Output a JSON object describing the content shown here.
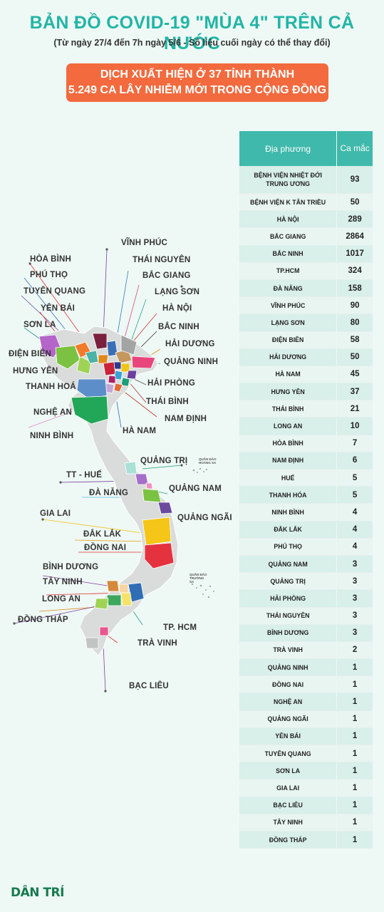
{
  "header": {
    "title": "BẢN ĐỒ COVID-19 \"MÙA 4\" TRÊN CẢ NƯỚC",
    "subtitle": "(Từ ngày 27/4 đến 7h ngày 5/6 - Số liệu cuối ngày có thể thay đổi)"
  },
  "banner": {
    "line1": "DỊCH XUẤT HIỆN Ở 37 TỈNH THÀNH",
    "line2": "5.249 CA LÂY NHIỄM MỚI TRONG CỘNG ĐỒNG"
  },
  "colors": {
    "title": "#22b5a6",
    "banner": "#f26a3d",
    "table_header": "#3fb9ab",
    "map_base": "#d9dcdb"
  },
  "map": {
    "labels": [
      {
        "name": "map-label-vinh-phuc",
        "text": "VĨNH PHÚC"
      },
      {
        "name": "map-label-thai-nguyen",
        "text": "THÁI NGUYÊN"
      },
      {
        "name": "map-label-bac-giang",
        "text": "BẮC GIANG"
      },
      {
        "name": "map-label-lang-son",
        "text": "LẠNG SƠN"
      },
      {
        "name": "map-label-ha-noi",
        "text": "HÀ NỘI"
      },
      {
        "name": "map-label-bac-ninh",
        "text": "BẮC NINH"
      },
      {
        "name": "map-label-hai-duong",
        "text": "HẢI DƯƠNG"
      },
      {
        "name": "map-label-quang-ninh",
        "text": "QUẢNG NINH"
      },
      {
        "name": "map-label-hai-phong",
        "text": "HẢI PHÒNG"
      },
      {
        "name": "map-label-thai-binh",
        "text": "THÁI BÌNH"
      },
      {
        "name": "map-label-nam-dinh",
        "text": "NAM ĐỊNH"
      },
      {
        "name": "map-label-ha-nam",
        "text": "HÀ NAM"
      },
      {
        "name": "map-label-hoa-binh",
        "text": "HÒA BÌNH"
      },
      {
        "name": "map-label-phu-tho",
        "text": "PHÚ THỌ"
      },
      {
        "name": "map-label-tuyen-quang",
        "text": "TUYÊN QUANG"
      },
      {
        "name": "map-label-yen-bai",
        "text": "YÊN BÁI"
      },
      {
        "name": "map-label-son-la",
        "text": "SƠN LA"
      },
      {
        "name": "map-label-dien-bien",
        "text": "ĐIỆN BIÊN"
      },
      {
        "name": "map-label-hung-yen",
        "text": "HƯNG YÊN"
      },
      {
        "name": "map-label-thanh-hoa",
        "text": "THANH HOÁ"
      },
      {
        "name": "map-label-nghe-an",
        "text": "NGHỆ AN"
      },
      {
        "name": "map-label-ninh-binh",
        "text": "NINH BÌNH"
      },
      {
        "name": "map-label-quang-tri",
        "text": "QUẢNG TRỊ"
      },
      {
        "name": "map-label-tt-hue",
        "text": "TT - HUẾ"
      },
      {
        "name": "map-label-da-nang",
        "text": "ĐÀ NẴNG"
      },
      {
        "name": "map-label-quang-nam",
        "text": "QUẢNG NAM"
      },
      {
        "name": "map-label-quang-ngai",
        "text": "QUẢNG NGÃI"
      },
      {
        "name": "map-label-gia-lai",
        "text": "GIA LAI"
      },
      {
        "name": "map-label-dak-lak",
        "text": "ĐẮK LẮK"
      },
      {
        "name": "map-label-dong-nai",
        "text": "ĐỒNG NAI"
      },
      {
        "name": "map-label-binh-duong",
        "text": "BÌNH DƯƠNG"
      },
      {
        "name": "map-label-tay-ninh",
        "text": "TÂY NINH"
      },
      {
        "name": "map-label-long-an",
        "text": "LONG AN"
      },
      {
        "name": "map-label-dong-thap",
        "text": "ĐỒNG THÁP"
      },
      {
        "name": "map-label-tp-hcm",
        "text": "TP. HCM"
      },
      {
        "name": "map-label-tra-vinh",
        "text": "TRÀ VINH"
      },
      {
        "name": "map-label-bac-lieu",
        "text": "BẠC LIÊU"
      }
    ],
    "island_hoang_sa": "QUẦN ĐẢO HOÀNG SA",
    "island_truong_sa": "QUẦN ĐẢO TRƯỜNG SA"
  },
  "chart_data": {
    "type": "table",
    "columns": [
      "Địa phương",
      "Ca mắc"
    ],
    "rows": [
      [
        "BỆNH VIỆN NHIỆT ĐỚI TRUNG ƯƠNG",
        93
      ],
      [
        "BỆNH VIỆN K TÂN TRIỀU",
        50
      ],
      [
        "HÀ NỘI",
        289
      ],
      [
        "BẮC GIANG",
        2864
      ],
      [
        "BẮC NINH",
        1017
      ],
      [
        "TP.HCM",
        324
      ],
      [
        "ĐÀ NẴNG",
        158
      ],
      [
        "VĨNH PHÚC",
        90
      ],
      [
        "LẠNG SƠN",
        80
      ],
      [
        "ĐIỆN BIÊN",
        58
      ],
      [
        "HẢI DƯƠNG",
        50
      ],
      [
        "HÀ NAM",
        45
      ],
      [
        "HƯNG YÊN",
        37
      ],
      [
        "THÁI BÌNH",
        21
      ],
      [
        "LONG AN",
        10
      ],
      [
        "HÒA BÌNH",
        7
      ],
      [
        "NAM ĐỊNH",
        6
      ],
      [
        "HUẾ",
        5
      ],
      [
        "THANH HÓA",
        5
      ],
      [
        "NINH BÌNH",
        4
      ],
      [
        "ĐẮK LẮK",
        4
      ],
      [
        "PHÚ THỌ",
        4
      ],
      [
        "QUẢNG NAM",
        3
      ],
      [
        "QUẢNG TRỊ",
        3
      ],
      [
        "HẢI PHÒNG",
        3
      ],
      [
        "THÁI NGUYÊN",
        3
      ],
      [
        "BÌNH DƯƠNG",
        3
      ],
      [
        "TRÀ VINH",
        2
      ],
      [
        "QUẢNG NINH",
        1
      ],
      [
        "ĐỒNG NAI",
        1
      ],
      [
        "NGHỆ AN",
        1
      ],
      [
        "QUẢNG NGÃI",
        1
      ],
      [
        "YÊN BÁI",
        1
      ],
      [
        "TUYÊN QUANG",
        1
      ],
      [
        "SƠN LA",
        1
      ],
      [
        "GIA LAI",
        1
      ],
      [
        "BẠC LIÊU",
        1
      ],
      [
        "TÂY NINH",
        1
      ],
      [
        "ĐỒNG THÁP",
        1
      ]
    ]
  },
  "footer": {
    "logo": "DÂN TRÍ"
  }
}
